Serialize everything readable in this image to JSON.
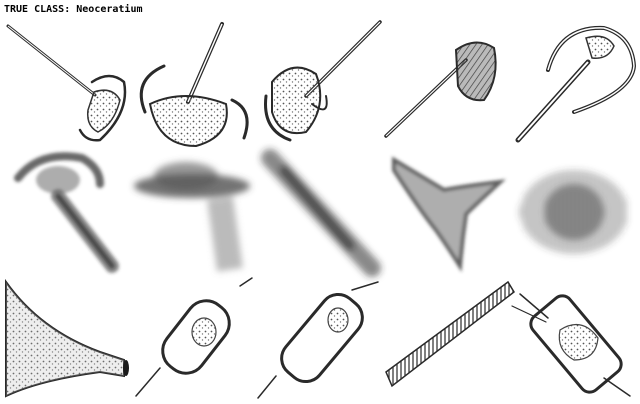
{
  "caption": {
    "prefix": "TRUE CLASS:",
    "class_name": "Neoceratium"
  },
  "grid": {
    "rows": 3,
    "columns": 5,
    "ink_color": "#2a2a2a",
    "background_color": "#ffffff"
  },
  "tiles": [
    {
      "row": 1,
      "col": 1,
      "subject": "dinoflagellate-long-horn"
    },
    {
      "row": 1,
      "col": 2,
      "subject": "dinoflagellate-curved-horns"
    },
    {
      "row": 1,
      "col": 3,
      "subject": "dinoflagellate-curved-horns"
    },
    {
      "row": 1,
      "col": 4,
      "subject": "dinoflagellate-long-horn-dense-body"
    },
    {
      "row": 1,
      "col": 5,
      "subject": "dinoflagellate-hooked-horn"
    },
    {
      "row": 2,
      "col": 1,
      "subject": "blurred-hooked-cell"
    },
    {
      "row": 2,
      "col": 2,
      "subject": "blurred-flat-cell"
    },
    {
      "row": 2,
      "col": 3,
      "subject": "blurred-streak-cell"
    },
    {
      "row": 2,
      "col": 4,
      "subject": "blurred-three-horn-cell"
    },
    {
      "row": 2,
      "col": 5,
      "subject": "blurred-diffuse-cell"
    },
    {
      "row": 3,
      "col": 1,
      "subject": "tintinnid-lorica"
    },
    {
      "row": 3,
      "col": 2,
      "subject": "diatom-cylinder"
    },
    {
      "row": 3,
      "col": 3,
      "subject": "diatom-cylinder"
    },
    {
      "row": 3,
      "col": 4,
      "subject": "diatom-chain"
    },
    {
      "row": 3,
      "col": 5,
      "subject": "diatom-cylinder-with-setae"
    }
  ]
}
